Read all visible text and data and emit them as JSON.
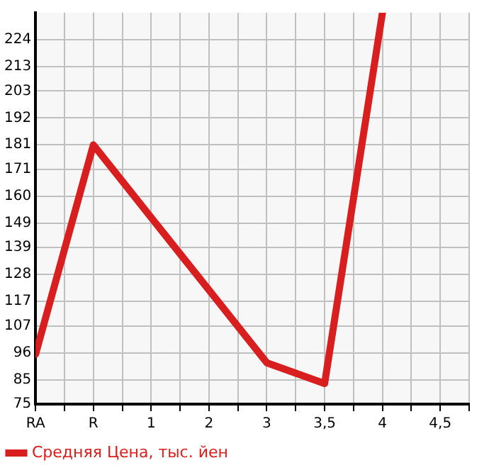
{
  "chart_data": {
    "type": "line",
    "categories": [
      "RA",
      "R",
      "1",
      "2",
      "3",
      "3,5",
      "4",
      "4,5"
    ],
    "series": [
      {
        "name": "Средняя Цена, тыс. йен",
        "color": "#d81e1e",
        "values": [
          95.4,
          181,
          151.3,
          121.6,
          91.9,
          83.4,
          235,
          null
        ]
      }
    ],
    "ylim": [
      75,
      235
    ],
    "yticks": [
      75,
      85,
      96,
      107,
      117,
      128,
      139,
      149,
      160,
      171,
      181,
      192,
      203,
      213,
      224
    ],
    "grid": true,
    "legend": "bottom",
    "marker": "none",
    "line_style": "solid"
  }
}
